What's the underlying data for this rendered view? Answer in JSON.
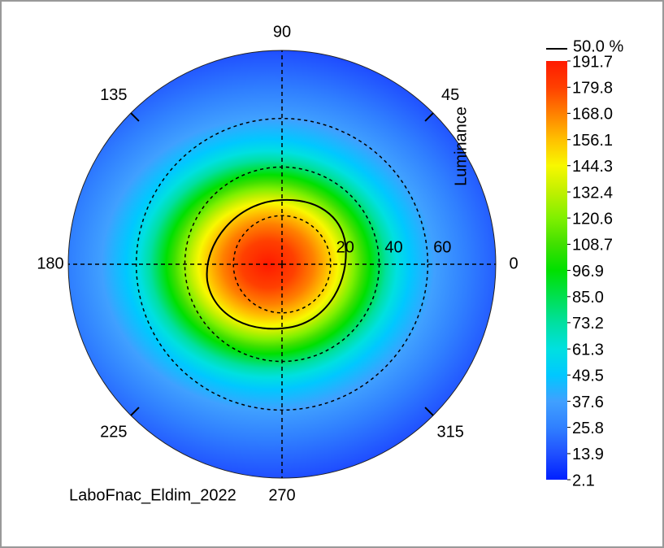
{
  "chart_data": {
    "type": "polar-heatmap",
    "angle_ticks": [
      0,
      45,
      90,
      135,
      180,
      225,
      270,
      315
    ],
    "radial_ticks": [
      20,
      40,
      60
    ],
    "rlim": [
      0,
      88
    ],
    "colorbar": {
      "label": "Luminance",
      "ticks": [
        191.7,
        179.8,
        {
          "value": 168.0,
          "label": "168.0"
        },
        156.1,
        144.3,
        132.4,
        120.6,
        108.7,
        96.9,
        {
          "value": 85.0,
          "label": "85.0"
        },
        73.2,
        61.3,
        49.5,
        37.6,
        25.8,
        13.9,
        2.1
      ],
      "colors": [
        "#ff1a00",
        "#ff4000",
        "#ff8000",
        "#ffc000",
        "#f8f800",
        "#c0f000",
        "#80f000",
        "#40e000",
        "#00e000",
        "#00e050",
        "#00e0a0",
        "#00e0e0",
        "#00c8ff",
        "#40a0ff",
        "#3080ff",
        "#2050ff",
        "#0020ff"
      ]
    },
    "contour": {
      "label": "50.0 %",
      "color": "#000000"
    },
    "footer": "LaboFnac_Eldim_2022"
  }
}
